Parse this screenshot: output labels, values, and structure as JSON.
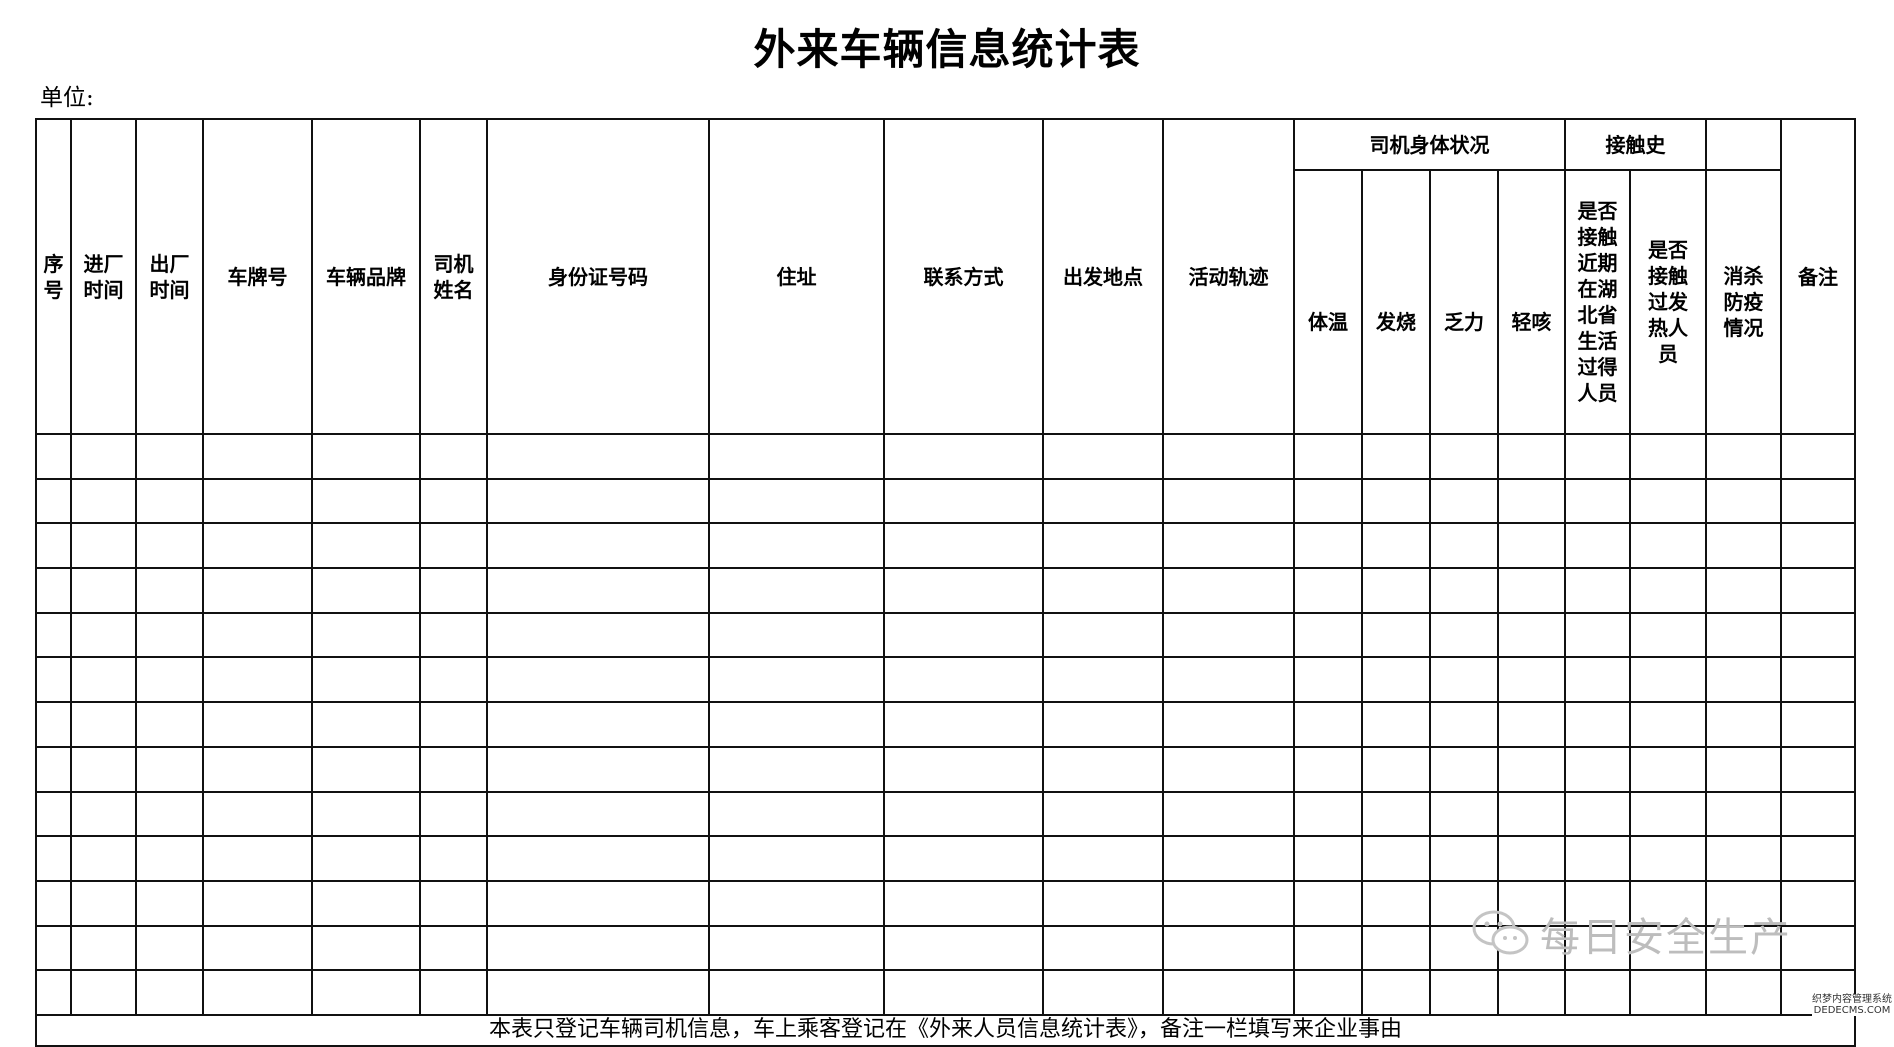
{
  "title": "外来车辆信息统计表",
  "unit_label": "单位:",
  "header": {
    "columns": [
      "序号",
      "进厂时间",
      "出厂时间",
      "车牌号",
      "车辆品牌",
      "司机姓名",
      "身份证号码",
      "住址",
      "联系方式",
      "出发地点",
      "活动轨迹"
    ],
    "group_health": "司机身体状况",
    "health_columns": [
      "体温",
      "发烧",
      "乏力",
      "轻咳"
    ],
    "group_contact": "接触史",
    "contact_columns": [
      "是否接触近期在湖北省生活过得人员",
      "是否接触过发热人员"
    ],
    "disinfection": "消杀防疫情况",
    "remarks": "备注"
  },
  "data_rows": 13,
  "footer_note": "本表只登记车辆司机信息，车上乘客登记在《外来人员信息统计表》，备注一栏填写来企业事由",
  "watermark": {
    "text": "每日安全生产",
    "icon": "wechat-icon"
  },
  "corner_mark": {
    "line1": "织梦内容管理系统",
    "line2": "DEDECMS.COM"
  }
}
